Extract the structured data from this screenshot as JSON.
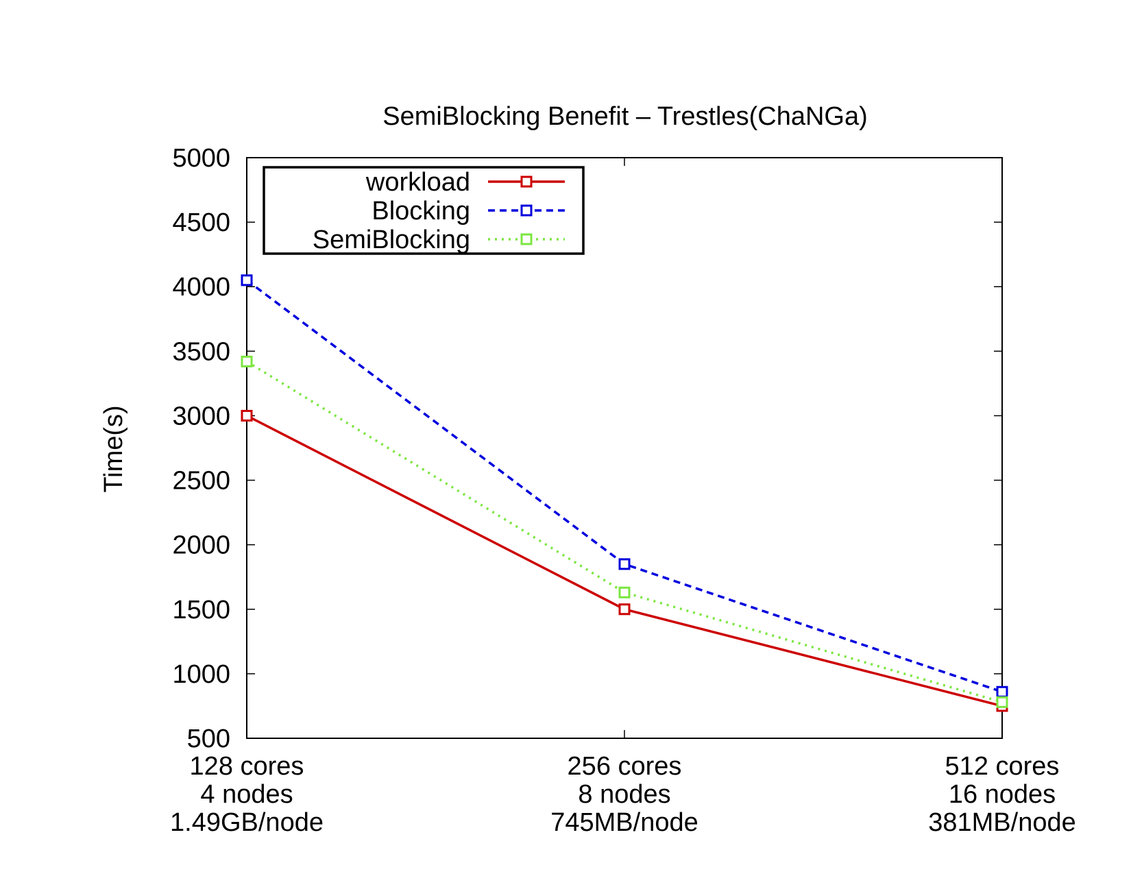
{
  "chart_data": {
    "type": "line",
    "title": "SemiBlocking Benefit – Trestles(ChaNGa)",
    "xlabel": "",
    "ylabel": "Time(s)",
    "ylim": [
      500,
      5000
    ],
    "yticks": [
      500,
      1000,
      1500,
      2000,
      2500,
      3000,
      3500,
      4000,
      4500,
      5000
    ],
    "grid": false,
    "legend_position": "top-left",
    "categories": [
      [
        "128 cores",
        "4 nodes",
        "1.49GB/node"
      ],
      [
        "256 cores",
        "8 nodes",
        "745MB/node"
      ],
      [
        "512 cores",
        "16 nodes",
        "381MB/node"
      ]
    ],
    "series": [
      {
        "name": "workload",
        "values": [
          3000,
          1500,
          750
        ],
        "color": "#cc0000",
        "dash": "solid",
        "marker": "open-square"
      },
      {
        "name": "Blocking",
        "values": [
          4050,
          1850,
          860
        ],
        "color": "#0000dd",
        "dash": "dashed",
        "marker": "open-square"
      },
      {
        "name": "SemiBlocking",
        "values": [
          3420,
          1630,
          780
        ],
        "color": "#7ce641",
        "dash": "dotted",
        "marker": "open-square"
      }
    ]
  }
}
